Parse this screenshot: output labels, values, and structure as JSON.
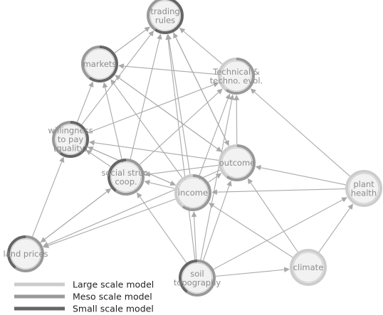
{
  "colors": {
    "large": "#cccccc",
    "meso": "#999999",
    "small": "#666666",
    "edge": "#a9a9a9",
    "node_fill": "#f2f2f2"
  },
  "nodes": [
    {
      "id": "trading_rules",
      "lines": [
        "trading",
        "rules"
      ],
      "ring": [
        "small",
        "meso"
      ]
    },
    {
      "id": "markets",
      "lines": [
        "markets"
      ],
      "ring": [
        "small",
        "meso"
      ]
    },
    {
      "id": "techno",
      "lines": [
        "Technical &",
        "techno. evol."
      ],
      "ring": [
        "meso",
        "large"
      ]
    },
    {
      "id": "willingness",
      "lines": [
        "willingness",
        "to pay",
        "(quality)"
      ],
      "ring": [
        "small",
        "meso"
      ]
    },
    {
      "id": "social",
      "lines": [
        "social struc.",
        "coop."
      ],
      "ring": [
        "meso",
        "small"
      ]
    },
    {
      "id": "outcome",
      "lines": [
        "outcome"
      ],
      "ring": [
        "meso",
        "large"
      ]
    },
    {
      "id": "income",
      "lines": [
        "income"
      ],
      "ring": [
        "meso",
        "large"
      ]
    },
    {
      "id": "plant_health",
      "lines": [
        "plant",
        "health"
      ],
      "ring": [
        "large"
      ]
    },
    {
      "id": "land_prices",
      "lines": [
        "land prices"
      ],
      "ring": [
        "meso",
        "small"
      ]
    },
    {
      "id": "topography",
      "lines": [
        "soil",
        "topography"
      ],
      "ring": [
        "meso",
        "small"
      ]
    },
    {
      "id": "climate",
      "lines": [
        "climate"
      ],
      "ring": [
        "large"
      ]
    }
  ],
  "edges": [
    [
      "markets",
      "trading_rules"
    ],
    [
      "techno",
      "trading_rules"
    ],
    [
      "willingness",
      "trading_rules"
    ],
    [
      "social",
      "trading_rules"
    ],
    [
      "outcome",
      "trading_rules"
    ],
    [
      "income",
      "trading_rules"
    ],
    [
      "topography",
      "trading_rules"
    ],
    [
      "techno",
      "markets"
    ],
    [
      "willingness",
      "markets"
    ],
    [
      "outcome",
      "markets"
    ],
    [
      "income",
      "markets"
    ],
    [
      "social",
      "markets"
    ],
    [
      "willingness",
      "techno"
    ],
    [
      "social",
      "techno"
    ],
    [
      "outcome",
      "techno"
    ],
    [
      "income",
      "techno"
    ],
    [
      "plant_health",
      "techno"
    ],
    [
      "topography",
      "techno"
    ],
    [
      "social",
      "willingness"
    ],
    [
      "outcome",
      "willingness"
    ],
    [
      "income",
      "willingness"
    ],
    [
      "land_prices",
      "willingness"
    ],
    [
      "topography",
      "social"
    ],
    [
      "income",
      "social"
    ],
    [
      "outcome",
      "social"
    ],
    [
      "land_prices",
      "social"
    ],
    [
      "income",
      "outcome"
    ],
    [
      "plant_health",
      "outcome"
    ],
    [
      "topography",
      "outcome"
    ],
    [
      "climate",
      "outcome"
    ],
    [
      "plant_health",
      "income"
    ],
    [
      "topography",
      "income"
    ],
    [
      "climate",
      "income"
    ],
    [
      "climate",
      "plant_health"
    ],
    [
      "topography",
      "plant_health"
    ],
    [
      "topography",
      "climate"
    ],
    [
      "income",
      "land_prices"
    ],
    [
      "outcome",
      "land_prices"
    ],
    [
      "social",
      "land_prices"
    ],
    [
      "trading_rules",
      "outcome"
    ],
    [
      "markets",
      "outcome"
    ],
    [
      "willingness",
      "income"
    ]
  ],
  "legend": [
    {
      "key": "large",
      "label": "Large scale model"
    },
    {
      "key": "meso",
      "label": "Meso scale model"
    },
    {
      "key": "small",
      "label": "Small scale model"
    }
  ]
}
